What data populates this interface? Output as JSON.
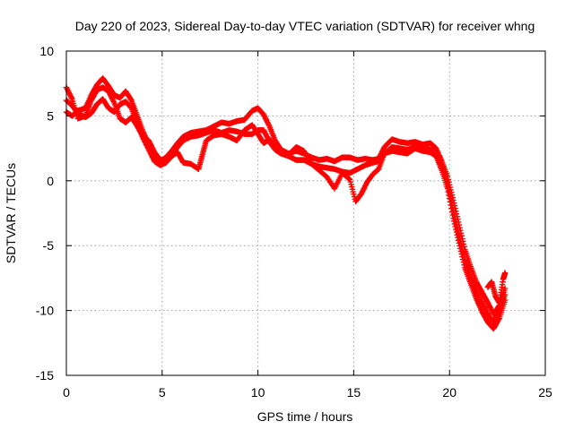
{
  "chart_data": {
    "type": "scatter",
    "title": "Day 220 of 2023, Sidereal Day-to-day VTEC variation (SDTVAR) for receiver whng",
    "xlabel": "GPS time / hours",
    "ylabel": "SDTVAR / TECUs",
    "xlim": [
      0,
      25
    ],
    "ylim": [
      -15,
      10
    ],
    "xticks": [
      0,
      5,
      10,
      15,
      20,
      25
    ],
    "yticks": [
      -15,
      -10,
      -5,
      0,
      5,
      10
    ],
    "xtick_labels": [
      "0",
      "5",
      "10",
      "15",
      "20",
      "25"
    ],
    "ytick_labels": [
      "-15",
      "-10",
      "-5",
      "0",
      "5",
      "10"
    ],
    "grid": true,
    "marker": "plus",
    "series": [
      {
        "name": "trace-a",
        "color": "#ff0000",
        "points": [
          [
            0.0,
            5.3
          ],
          [
            0.3,
            5.0
          ],
          [
            0.6,
            5.4
          ],
          [
            1.0,
            5.6
          ],
          [
            1.3,
            6.6
          ],
          [
            1.6,
            7.4
          ],
          [
            1.9,
            7.9
          ],
          [
            2.2,
            7.3
          ],
          [
            2.5,
            6.6
          ],
          [
            2.8,
            6.4
          ],
          [
            3.1,
            6.9
          ],
          [
            3.4,
            6.2
          ],
          [
            3.7,
            5.0
          ],
          [
            4.0,
            3.8
          ],
          [
            4.3,
            2.8
          ],
          [
            4.6,
            1.9
          ],
          [
            4.9,
            1.5
          ],
          [
            5.2,
            1.8
          ],
          [
            5.5,
            2.3
          ],
          [
            5.8,
            2.9
          ],
          [
            6.1,
            3.4
          ],
          [
            6.5,
            3.7
          ],
          [
            6.9,
            3.8
          ],
          [
            7.3,
            3.9
          ],
          [
            7.7,
            4.2
          ],
          [
            8.1,
            4.5
          ],
          [
            8.5,
            4.4
          ],
          [
            8.9,
            4.6
          ],
          [
            9.3,
            4.7
          ],
          [
            9.7,
            5.4
          ],
          [
            10.0,
            5.6
          ],
          [
            10.3,
            5.1
          ],
          [
            10.6,
            4.2
          ],
          [
            10.9,
            3.1
          ],
          [
            11.2,
            2.4
          ],
          [
            11.6,
            2.1
          ],
          [
            12.0,
            2.3
          ],
          [
            12.4,
            2.1
          ],
          [
            12.8,
            1.8
          ],
          [
            13.2,
            1.6
          ],
          [
            13.6,
            1.7
          ],
          [
            14.0,
            1.5
          ],
          [
            14.4,
            1.8
          ],
          [
            14.8,
            1.8
          ],
          [
            15.2,
            1.6
          ],
          [
            15.6,
            1.7
          ],
          [
            16.0,
            1.6
          ],
          [
            16.3,
            1.7
          ],
          [
            16.6,
            2.6
          ],
          [
            17.0,
            3.2
          ],
          [
            17.4,
            3.0
          ],
          [
            17.8,
            2.9
          ],
          [
            18.2,
            3.0
          ],
          [
            18.6,
            2.8
          ],
          [
            19.0,
            2.9
          ],
          [
            19.3,
            2.5
          ],
          [
            19.6,
            1.5
          ],
          [
            19.9,
            0.3
          ],
          [
            20.2,
            -1.5
          ],
          [
            20.5,
            -3.4
          ],
          [
            20.8,
            -5.3
          ],
          [
            21.1,
            -6.6
          ],
          [
            21.4,
            -7.8
          ],
          [
            21.7,
            -8.6
          ],
          [
            22.0,
            -9.4
          ],
          [
            22.3,
            -10.3
          ],
          [
            22.6,
            -9.6
          ],
          [
            22.9,
            -8.3
          ]
        ]
      },
      {
        "name": "trace-b",
        "color": "#ff0000",
        "points": [
          [
            0.0,
            6.2
          ],
          [
            0.3,
            5.8
          ],
          [
            0.6,
            5.2
          ],
          [
            1.0,
            4.9
          ],
          [
            1.3,
            5.2
          ],
          [
            1.6,
            5.9
          ],
          [
            1.9,
            6.3
          ],
          [
            2.2,
            5.6
          ],
          [
            2.5,
            5.3
          ],
          [
            2.8,
            5.9
          ],
          [
            3.1,
            6.1
          ],
          [
            3.4,
            5.6
          ],
          [
            3.7,
            4.4
          ],
          [
            4.0,
            3.3
          ],
          [
            4.3,
            2.4
          ],
          [
            4.6,
            1.5
          ],
          [
            4.9,
            1.2
          ],
          [
            5.2,
            1.4
          ],
          [
            5.5,
            1.9
          ],
          [
            5.8,
            2.6
          ],
          [
            6.1,
            3.1
          ],
          [
            6.5,
            3.4
          ],
          [
            6.9,
            3.5
          ],
          [
            7.3,
            3.7
          ],
          [
            7.7,
            3.9
          ],
          [
            8.1,
            3.7
          ],
          [
            8.5,
            3.9
          ],
          [
            8.9,
            3.8
          ],
          [
            9.3,
            3.6
          ],
          [
            9.7,
            3.6
          ],
          [
            10.0,
            3.9
          ],
          [
            10.3,
            3.9
          ],
          [
            10.6,
            3.0
          ],
          [
            10.9,
            2.4
          ],
          [
            11.2,
            2.1
          ],
          [
            11.6,
            1.9
          ],
          [
            12.0,
            1.6
          ],
          [
            12.4,
            1.6
          ],
          [
            12.8,
            1.3
          ],
          [
            13.2,
            1.1
          ],
          [
            13.6,
            1.0
          ],
          [
            14.0,
            0.9
          ],
          [
            14.4,
            0.7
          ],
          [
            14.8,
            0.6
          ],
          [
            15.2,
            0.9
          ],
          [
            15.6,
            1.2
          ],
          [
            16.0,
            1.4
          ],
          [
            16.3,
            1.5
          ],
          [
            16.6,
            2.1
          ],
          [
            17.0,
            2.6
          ],
          [
            17.4,
            2.5
          ],
          [
            17.8,
            2.4
          ],
          [
            18.2,
            2.6
          ],
          [
            18.6,
            2.5
          ],
          [
            19.0,
            2.4
          ],
          [
            19.3,
            2.1
          ],
          [
            19.6,
            1.1
          ],
          [
            19.9,
            -0.3
          ],
          [
            20.2,
            -2.3
          ],
          [
            20.5,
            -4.3
          ],
          [
            20.8,
            -6.1
          ],
          [
            21.1,
            -7.4
          ],
          [
            21.4,
            -8.5
          ],
          [
            21.7,
            -9.4
          ],
          [
            22.0,
            -10.3
          ],
          [
            22.3,
            -10.9
          ],
          [
            22.6,
            -10.1
          ],
          [
            22.9,
            -8.8
          ]
        ]
      },
      {
        "name": "trace-c",
        "color": "#ff0000",
        "points": [
          [
            0.0,
            7.2
          ],
          [
            0.3,
            6.3
          ],
          [
            0.6,
            4.8
          ],
          [
            1.0,
            5.0
          ],
          [
            1.3,
            6.2
          ],
          [
            1.6,
            7.0
          ],
          [
            1.9,
            7.2
          ],
          [
            2.2,
            6.9
          ],
          [
            2.5,
            6.0
          ],
          [
            2.8,
            4.8
          ],
          [
            3.1,
            4.5
          ],
          [
            3.4,
            4.9
          ],
          [
            3.7,
            4.2
          ],
          [
            4.0,
            3.4
          ],
          [
            4.3,
            3.1
          ],
          [
            4.6,
            2.2
          ],
          [
            4.9,
            1.6
          ],
          [
            5.2,
            1.6
          ],
          [
            5.5,
            1.9
          ],
          [
            5.8,
            2.2
          ],
          [
            6.1,
            1.4
          ],
          [
            6.5,
            1.3
          ],
          [
            6.9,
            0.9
          ],
          [
            7.1,
            2.0
          ],
          [
            7.3,
            3.1
          ],
          [
            7.7,
            3.5
          ],
          [
            8.1,
            3.6
          ],
          [
            8.5,
            3.4
          ],
          [
            8.9,
            3.1
          ],
          [
            9.3,
            3.9
          ],
          [
            9.7,
            4.3
          ],
          [
            10.0,
            3.6
          ],
          [
            10.3,
            2.9
          ],
          [
            10.6,
            3.2
          ],
          [
            10.9,
            2.7
          ],
          [
            11.2,
            2.3
          ],
          [
            11.6,
            2.0
          ],
          [
            12.0,
            2.6
          ],
          [
            12.4,
            2.3
          ],
          [
            12.8,
            1.3
          ],
          [
            13.2,
            0.8
          ],
          [
            13.6,
            0.3
          ],
          [
            14.0,
            -0.6
          ],
          [
            14.4,
            0.6
          ],
          [
            14.8,
            0.1
          ],
          [
            15.1,
            -1.6
          ],
          [
            15.4,
            -1.0
          ],
          [
            15.7,
            -0.1
          ],
          [
            16.0,
            0.5
          ],
          [
            16.3,
            0.9
          ],
          [
            16.6,
            2.1
          ],
          [
            17.0,
            2.3
          ],
          [
            17.4,
            2.2
          ],
          [
            17.8,
            2.1
          ],
          [
            18.2,
            2.5
          ],
          [
            18.6,
            2.3
          ],
          [
            19.0,
            2.2
          ],
          [
            19.3,
            1.9
          ],
          [
            19.6,
            0.8
          ],
          [
            19.9,
            -0.6
          ],
          [
            20.2,
            -2.9
          ],
          [
            20.5,
            -4.8
          ],
          [
            20.8,
            -6.7
          ],
          [
            21.1,
            -7.9
          ],
          [
            21.4,
            -9.1
          ],
          [
            21.7,
            -10.1
          ],
          [
            22.0,
            -10.9
          ],
          [
            22.3,
            -11.4
          ],
          [
            22.6,
            -10.6
          ],
          [
            22.9,
            -9.2
          ]
        ]
      },
      {
        "name": "trace-d",
        "color": "#ff0000",
        "points": [
          [
            22.0,
            -8.2
          ],
          [
            22.2,
            -7.8
          ],
          [
            22.4,
            -8.9
          ],
          [
            22.6,
            -9.4
          ],
          [
            22.8,
            -7.6
          ],
          [
            22.9,
            -7.1
          ]
        ]
      }
    ]
  }
}
